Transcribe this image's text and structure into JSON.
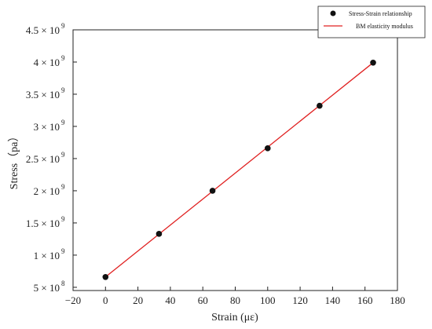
{
  "chart_data": {
    "type": "scatter",
    "xlabel": "Strain (με)",
    "ylabel": "Stress（pa）",
    "xlim": [
      -20,
      180
    ],
    "ylim": [
      450000000,
      4500000000
    ],
    "x_ticks": [
      -20,
      0,
      20,
      40,
      60,
      80,
      100,
      120,
      140,
      160,
      180
    ],
    "y_ticks": [
      {
        "value": 500000000,
        "mantissa": "5",
        "exp": "8"
      },
      {
        "value": 1000000000,
        "mantissa": "1",
        "exp": "9"
      },
      {
        "value": 1500000000,
        "mantissa": "1.5",
        "exp": "9"
      },
      {
        "value": 2000000000,
        "mantissa": "2",
        "exp": "9"
      },
      {
        "value": 2500000000,
        "mantissa": "2.5",
        "exp": "9"
      },
      {
        "value": 3000000000,
        "mantissa": "3",
        "exp": "9"
      },
      {
        "value": 3500000000,
        "mantissa": "3.5",
        "exp": "9"
      },
      {
        "value": 4000000000,
        "mantissa": "4",
        "exp": "9"
      },
      {
        "value": 4500000000,
        "mantissa": "4.5",
        "exp": "9"
      }
    ],
    "grid": false,
    "legend_position": "top-right",
    "series": [
      {
        "name": "Stress-Strain relationship",
        "kind": "scatter",
        "color": "#111111",
        "x": [
          0,
          33,
          66,
          100,
          132,
          165
        ],
        "y": [
          660000000,
          1330000000,
          2000000000,
          2660000000,
          3320000000,
          3990000000
        ]
      },
      {
        "name": "BM elasticity modulus",
        "kind": "line",
        "color": "#e02020",
        "x": [
          0,
          165
        ],
        "y": [
          660000000,
          3990000000
        ]
      }
    ]
  }
}
